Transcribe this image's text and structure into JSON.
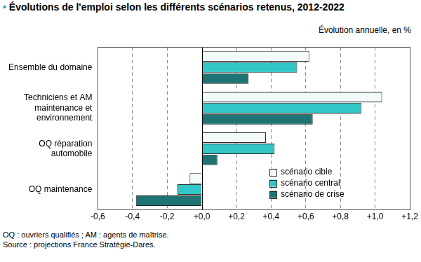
{
  "chart_data": {
    "type": "bar",
    "orientation": "horizontal",
    "title": "• Évolutions de l'emploi selon les différents scénarios retenus, 2012-2022",
    "subtitle": "Évolution annuelle, en %",
    "notes": [
      "OQ : ouvriers qualifiés ; AM : agents de maîtrise.",
      "Source : projections France Stratégie-Dares."
    ],
    "categories": [
      "Ensemble du domaine",
      "Techniciens et AM maintenance et environnement",
      "OQ réparation automobile",
      "OQ maintenance"
    ],
    "series": [
      {
        "name": "scénario cible",
        "color": "#f2fafa",
        "values": [
          0.62,
          1.04,
          0.37,
          -0.07
        ]
      },
      {
        "name": "scénario central",
        "color": "#33c6c6",
        "values": [
          0.55,
          0.92,
          0.42,
          -0.14
        ]
      },
      {
        "name": "scénario de crise",
        "color": "#1f7373",
        "values": [
          0.27,
          0.64,
          0.09,
          -0.38
        ]
      }
    ],
    "xlim": [
      -0.6,
      1.2
    ],
    "xticks": [
      {
        "value": -0.6,
        "label": "-0,6"
      },
      {
        "value": -0.4,
        "label": "-0,4"
      },
      {
        "value": -0.2,
        "label": "-0,2"
      },
      {
        "value": 0,
        "label": "+0,0"
      },
      {
        "value": 0.2,
        "label": "+0,2"
      },
      {
        "value": 0.4,
        "label": "+0,4"
      },
      {
        "value": 0.6,
        "label": "+0,6"
      },
      {
        "value": 0.8,
        "label": "+0,8"
      },
      {
        "value": 1.0,
        "label": "+1,0"
      },
      {
        "value": 1.2,
        "label": "+1,2"
      }
    ],
    "grid": true,
    "legend": "lower right"
  }
}
